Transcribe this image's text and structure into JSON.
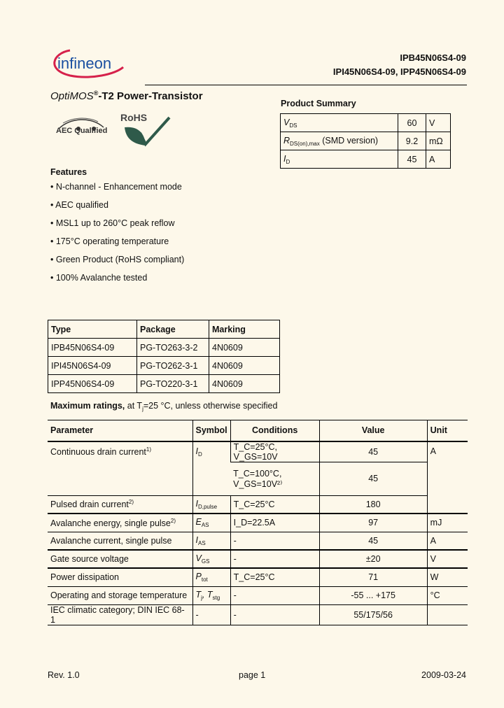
{
  "logo": "infineon",
  "header": {
    "part_line1": "IPB45N06S4-09",
    "part_line2": "IPI45N06S4-09, IPP45N06S4-09"
  },
  "title": {
    "prefix": "OptiMOS",
    "reg": "®",
    "suffix": "-T2 Power-Transistor"
  },
  "badges": {
    "aec": "AEC Qualified",
    "rohs": "RoHS"
  },
  "product_summary": {
    "heading": "Product Summary",
    "rows": [
      {
        "sym": "V",
        "sub": "DS",
        "extra": "",
        "value": "60",
        "unit": "V"
      },
      {
        "sym": "R",
        "sub": "DS(on),max",
        "extra": " (SMD version)",
        "value": "9.2",
        "unit": "mΩ"
      },
      {
        "sym": "I",
        "sub": "D",
        "extra": "",
        "value": "45",
        "unit": "A"
      }
    ]
  },
  "features": {
    "heading": "Features",
    "items": [
      "• N-channel - Enhancement mode",
      "• AEC qualified",
      "• MSL1 up to 260°C peak reflow",
      "• 175°C operating temperature",
      "• Green Product (RoHS compliant)",
      "• 100% Avalanche tested"
    ]
  },
  "type_table": {
    "headers": [
      "Type",
      "Package",
      "Marking"
    ],
    "rows": [
      [
        "IPB45N06S4-09",
        "PG-TO263-3-2",
        "4N0609"
      ],
      [
        "IPI45N06S4-09",
        "PG-TO262-3-1",
        "4N0609"
      ],
      [
        "IPP45N06S4-09",
        "PG-TO220-3-1",
        "4N0609"
      ]
    ]
  },
  "max_ratings": {
    "heading": "Maximum ratings,",
    "heading_rest": " at T",
    "heading_sub": "j",
    "heading_end": "=25 °C, unless otherwise specified",
    "headers": [
      "Parameter",
      "Symbol",
      "Conditions",
      "Value",
      "Unit"
    ],
    "rows": [
      {
        "param": "Continuous drain current",
        "note": "1)",
        "sym": "I",
        "sub": "D",
        "cond": "T_C=25°C, V_GS=10V",
        "value": "45",
        "unit": "A"
      },
      {
        "cond": "T_C=100°C, V_GS=10V²⁾",
        "value": "45"
      },
      {
        "param": "Pulsed drain current",
        "note": "2)",
        "sym": "I",
        "sub": "D,pulse",
        "cond": "T_C=25°C",
        "value": "180"
      },
      {
        "param": "Avalanche energy, single pulse",
        "note": "2)",
        "sym": "E",
        "sub": "AS",
        "cond": "I_D=22.5A",
        "value": "97",
        "unit": "mJ"
      },
      {
        "param": "Avalanche current, single pulse",
        "note": "",
        "sym": "I",
        "sub": "AS",
        "cond": "-",
        "value": "45",
        "unit": "A"
      },
      {
        "param": "Gate source voltage",
        "note": "",
        "sym": "V",
        "sub": "GS",
        "cond": "-",
        "value": "±20",
        "unit": "V"
      },
      {
        "param": "Power dissipation",
        "note": "",
        "sym": "P",
        "sub": "tot",
        "cond": "T_C=25°C",
        "value": "71",
        "unit": "W"
      },
      {
        "param": "Operating and storage temperature",
        "note": "",
        "sym": "T",
        "sub": "j",
        "sym2": ", T",
        "sub2": "stg",
        "cond": "-",
        "value": "-55 ... +175",
        "unit": "°C"
      },
      {
        "param": "IEC climatic category; DIN IEC 68-1",
        "note": "",
        "sym": "-",
        "sub": "",
        "cond": "-",
        "value": "55/175/56",
        "unit": ""
      }
    ]
  },
  "footer": {
    "rev": "Rev. 1.0",
    "page": "page 1",
    "date": "2009-03-24"
  },
  "colors": {
    "background": "#fdf8ea",
    "logo_blue": "#1a4fa0",
    "logo_red": "#d6214b",
    "rohs_green": "#2f5a4a"
  }
}
